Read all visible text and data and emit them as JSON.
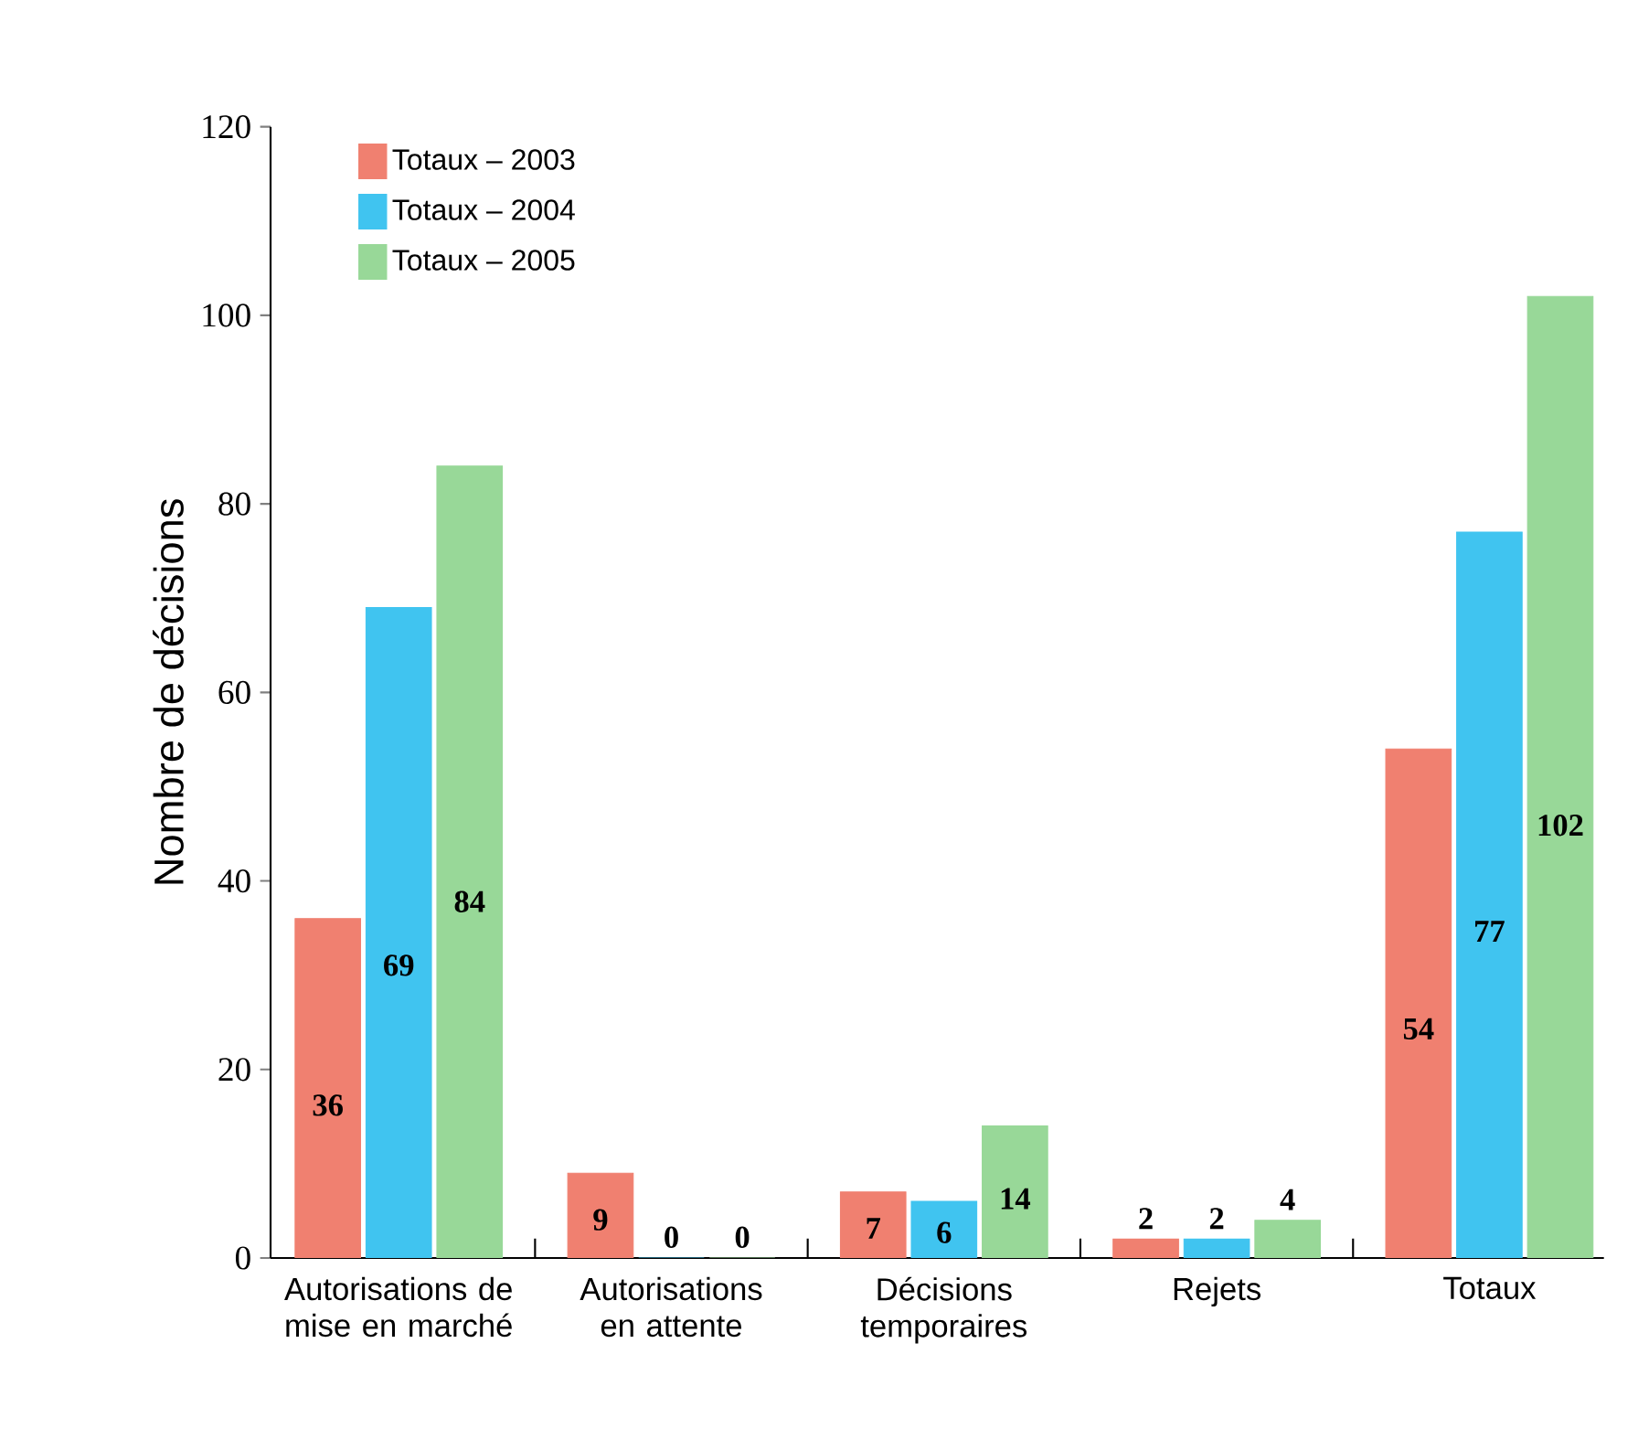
{
  "chart_data": {
    "type": "bar",
    "ylabel": "Nombre de décisions",
    "categories": [
      "Autorisations de mise en marché",
      "Autorisations en attente",
      "Décisions temporaires",
      "Rejets",
      "Totaux"
    ],
    "series": [
      {
        "name": "Totaux – 2003",
        "color": "#f08070",
        "values": [
          36,
          9,
          7,
          2,
          54
        ]
      },
      {
        "name": "Totaux – 2004",
        "color": "#40c4f0",
        "values": [
          69,
          0,
          6,
          2,
          77
        ]
      },
      {
        "name": "Totaux – 2005",
        "color": "#98d898",
        "values": [
          84,
          0,
          14,
          4,
          102
        ]
      }
    ],
    "ylim": [
      0,
      120
    ],
    "yticks": [
      0,
      20,
      40,
      60,
      80,
      100,
      120
    ],
    "data_labels": true,
    "legend": "top left",
    "grid": false
  }
}
